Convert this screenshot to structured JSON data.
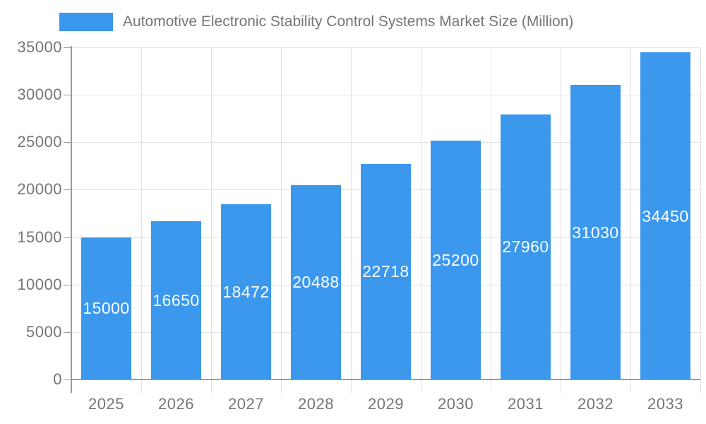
{
  "legend": {
    "series_label": "Automotive Electronic Stability Control Systems Market Size (Million)"
  },
  "chart_data": {
    "type": "bar",
    "title": "Automotive Electronic Stability Control Systems Market Size (Million)",
    "series_name": "Automotive Electronic Stability Control Systems Market Size (Million)",
    "categories": [
      "2025",
      "2026",
      "2027",
      "2028",
      "2029",
      "2030",
      "2031",
      "2032",
      "2033"
    ],
    "values": [
      15000,
      16650,
      18472,
      20488,
      22718,
      25200,
      27960,
      31030,
      34450
    ],
    "value_labels": [
      "15000",
      "16650",
      "18472",
      "20488",
      "22718",
      "25200",
      "27960",
      "31030",
      "34450"
    ],
    "xlabel": "",
    "ylabel": "",
    "ylim": [
      0,
      35000
    ],
    "ytick_interval": 5000,
    "yticks": [
      0,
      5000,
      10000,
      15000,
      20000,
      25000,
      30000,
      35000
    ],
    "grid": true,
    "legend_position": "top",
    "value_label_position": "inside-center",
    "colors": {
      "bar": "#3b98ec",
      "value_label": "#ffffff",
      "axis_text": "#757575",
      "axis_line": "#9b9b9b",
      "grid_line": "#e4e4e4",
      "boundary_line": "#e0e0e0",
      "background": "#ffffff"
    }
  }
}
